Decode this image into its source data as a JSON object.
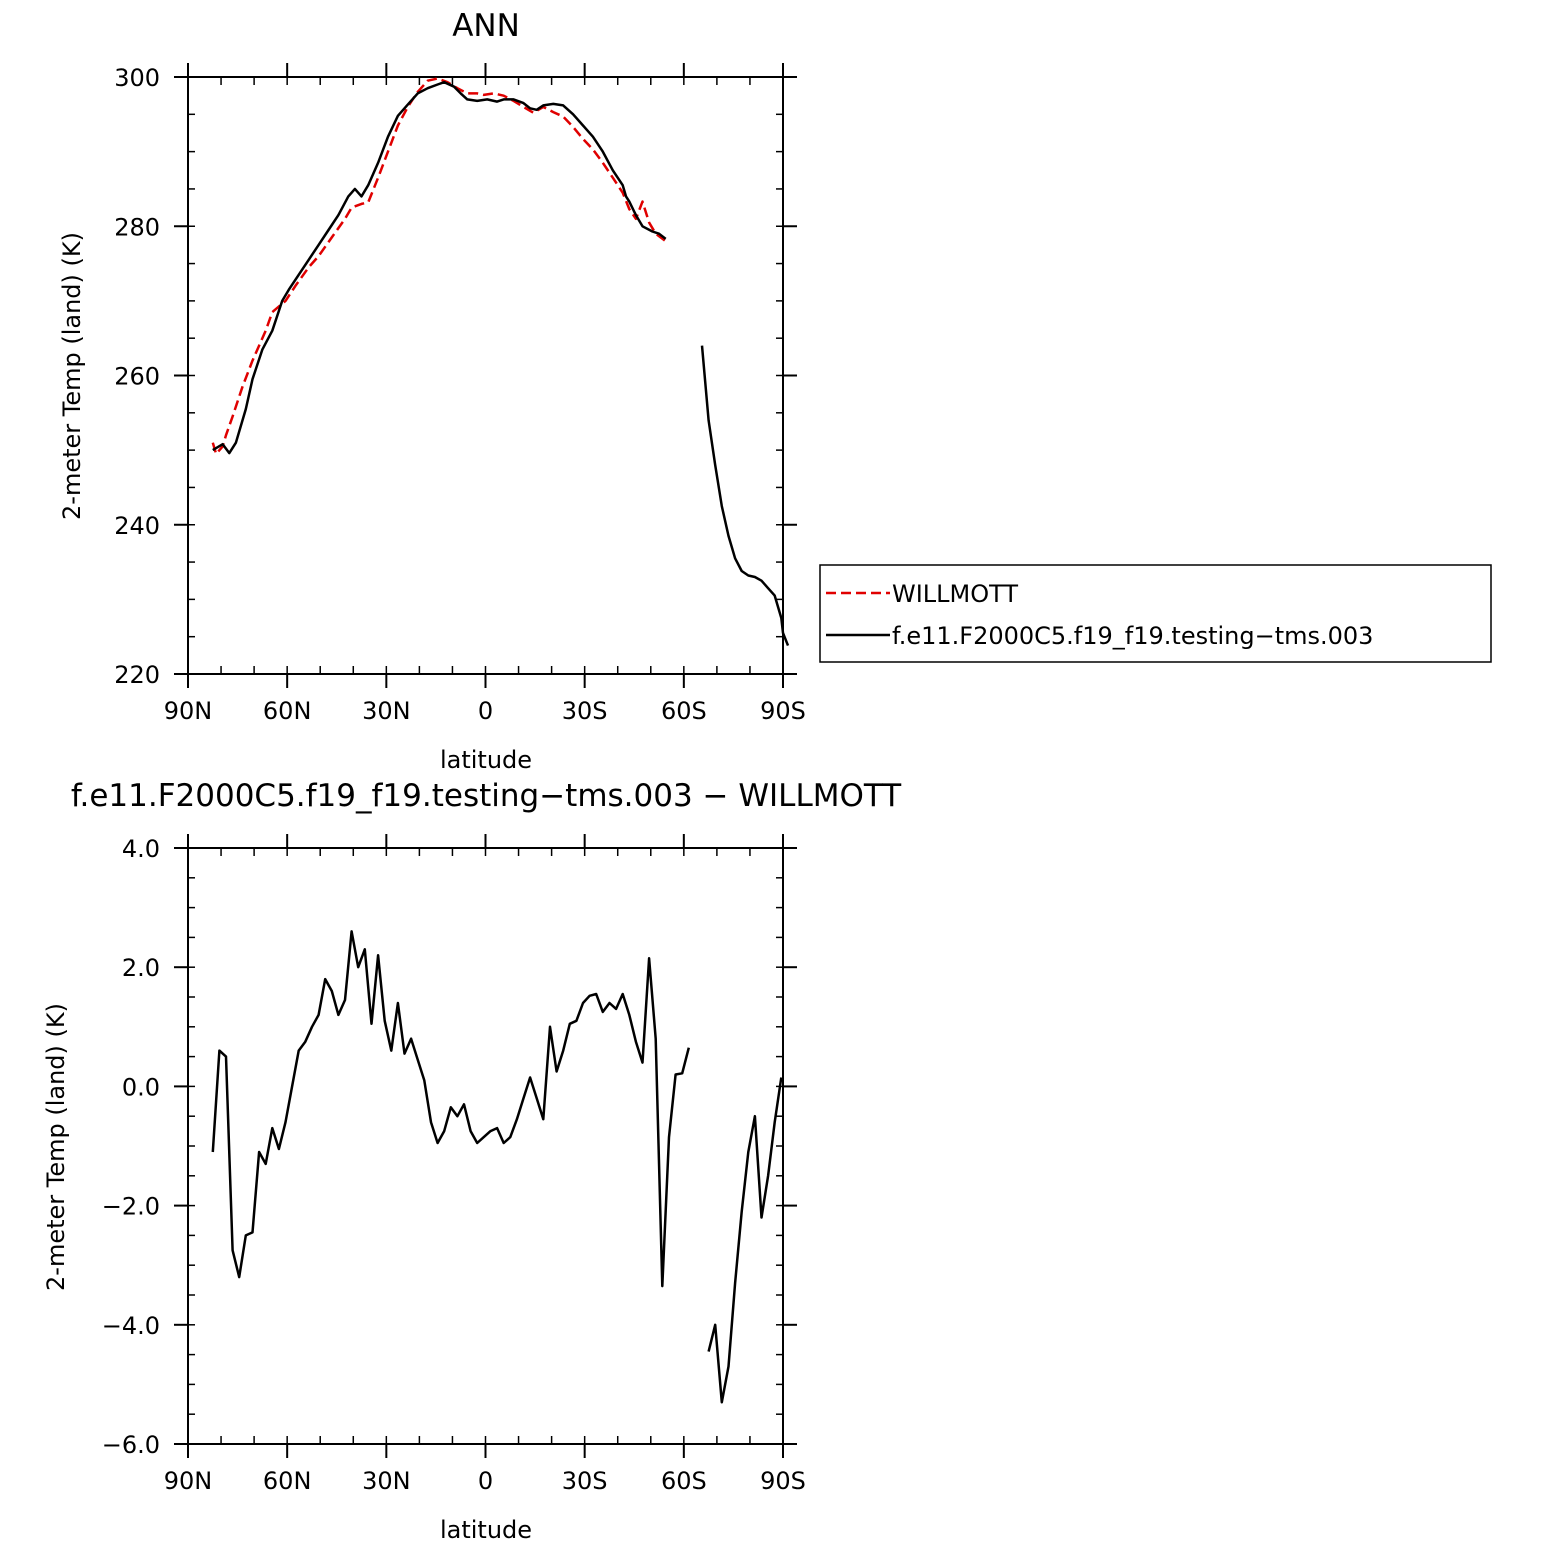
{
  "chart_data": [
    {
      "type": "line",
      "title": "ANN",
      "xlabel": "latitude",
      "ylabel": "2-meter Temp (land) (K)",
      "xlim": [
        90,
        -90
      ],
      "ylim": [
        220,
        300
      ],
      "x_ticks": [
        90,
        60,
        30,
        0,
        -30,
        -60,
        -90
      ],
      "x_tick_labels": [
        "90N",
        "60N",
        "30N",
        "0",
        "30S",
        "60S",
        "90S"
      ],
      "y_ticks": [
        220,
        240,
        260,
        280,
        300
      ],
      "y_tick_labels": [
        "220",
        "240",
        "260",
        "280",
        "300"
      ],
      "y_minor_step": 5,
      "x_minor_step": 10,
      "grid": false,
      "legend_position": "right",
      "series": [
        {
          "name": "WILLMOTT",
          "color": "#e00000",
          "dash": "dashed",
          "points": [
            [
              82.5,
              251
            ],
            [
              81.5,
              249.5
            ],
            [
              79.5,
              250.5
            ],
            [
              78.5,
              252
            ],
            [
              76.5,
              254.5
            ],
            [
              73.5,
              258.5
            ],
            [
              70.5,
              262
            ],
            [
              66.5,
              266
            ],
            [
              64.5,
              268.5
            ],
            [
              60.5,
              270
            ],
            [
              57.5,
              272
            ],
            [
              53.5,
              274.5
            ],
            [
              50.5,
              276
            ],
            [
              46.5,
              278.5
            ],
            [
              42.5,
              281
            ],
            [
              40.5,
              282.5
            ],
            [
              37.5,
              283
            ],
            [
              35.5,
              283.2
            ],
            [
              32.5,
              286.5
            ],
            [
              29.5,
              290
            ],
            [
              26.5,
              293.5
            ],
            [
              23.5,
              296
            ],
            [
              20.5,
              298
            ],
            [
              17.5,
              299.5
            ],
            [
              14.5,
              299.8
            ],
            [
              11.5,
              299.3
            ],
            [
              8.5,
              298.5
            ],
            [
              5.5,
              297.8
            ],
            [
              2.5,
              297.8
            ],
            [
              0.5,
              297.6
            ],
            [
              -2.5,
              297.8
            ],
            [
              -5.5,
              297.5
            ],
            [
              -8.5,
              296.8
            ],
            [
              -11.5,
              296
            ],
            [
              -14.5,
              295.2
            ],
            [
              -17.5,
              296
            ],
            [
              -20.5,
              295.3
            ],
            [
              -23.5,
              294.7
            ],
            [
              -26.5,
              293.3
            ],
            [
              -29.5,
              291.7
            ],
            [
              -32.5,
              290.3
            ],
            [
              -35.5,
              288.5
            ],
            [
              -38.5,
              286.5
            ],
            [
              -41.5,
              284.5
            ],
            [
              -43.5,
              282.3
            ],
            [
              -45.5,
              281
            ],
            [
              -47.5,
              283.3
            ],
            [
              -49.5,
              280.5
            ],
            [
              -51.5,
              279
            ],
            [
              -54.5,
              278
            ]
          ]
        },
        {
          "name": "f.e11.F2000C5.f19_f19.testing−tms.003",
          "color": "#000000",
          "dash": "solid",
          "segments": [
            [
              [
                82.5,
                250
              ],
              [
                79.5,
                250.8
              ],
              [
                77.5,
                249.6
              ],
              [
                75.5,
                251
              ],
              [
                72.5,
                255.5
              ],
              [
                70.5,
                259.5
              ],
              [
                67.5,
                263.5
              ],
              [
                64.5,
                266
              ],
              [
                61.5,
                270
              ],
              [
                59.5,
                271.5
              ],
              [
                56.5,
                273.5
              ],
              [
                53.5,
                275.5
              ],
              [
                50.5,
                277.5
              ],
              [
                47.5,
                279.5
              ],
              [
                44.5,
                281.5
              ],
              [
                41.5,
                284
              ],
              [
                39.5,
                285
              ],
              [
                37.5,
                284
              ],
              [
                35.5,
                285.5
              ],
              [
                32.5,
                288.5
              ],
              [
                29.5,
                292
              ],
              [
                26.5,
                294.8
              ],
              [
                23.5,
                296.3
              ],
              [
                20.5,
                297.8
              ],
              [
                17.5,
                298.5
              ],
              [
                14.5,
                299
              ],
              [
                12.5,
                299.3
              ],
              [
                9.5,
                298.7
              ],
              [
                7.5,
                297.8
              ],
              [
                5.5,
                297
              ],
              [
                2.5,
                296.8
              ],
              [
                -0.5,
                297
              ],
              [
                -3.5,
                296.7
              ],
              [
                -5.5,
                297
              ],
              [
                -8.5,
                297
              ],
              [
                -11.5,
                296.5
              ],
              [
                -13.5,
                295.8
              ],
              [
                -15.5,
                295.6
              ],
              [
                -17.5,
                296.2
              ],
              [
                -20.5,
                296.4
              ],
              [
                -23.5,
                296.2
              ],
              [
                -26.5,
                295
              ],
              [
                -29.5,
                293.5
              ],
              [
                -32.5,
                292
              ],
              [
                -35.5,
                290
              ],
              [
                -38.5,
                287.5
              ],
              [
                -41.5,
                285.5
              ],
              [
                -42.5,
                284
              ],
              [
                -43.5,
                283.3
              ],
              [
                -45.5,
                281.5
              ],
              [
                -47.5,
                280
              ],
              [
                -50.5,
                279.3
              ],
              [
                -52.5,
                279
              ],
              [
                -54.5,
                278.3
              ]
            ],
            [
              [
                -65.5,
                264
              ],
              [
                -67.5,
                254
              ],
              [
                -69.5,
                248
              ],
              [
                -71.5,
                242.5
              ],
              [
                -73.5,
                238.5
              ],
              [
                -75.5,
                235.5
              ],
              [
                -77.5,
                233.8
              ],
              [
                -79.5,
                233.2
              ],
              [
                -81.5,
                233
              ],
              [
                -83.5,
                232.5
              ],
              [
                -85.5,
                231.5
              ],
              [
                -87.5,
                230.5
              ],
              [
                -89.5,
                227.5
              ],
              [
                -90,
                225.5
              ],
              [
                -91.5,
                223.8
              ]
            ]
          ]
        }
      ]
    },
    {
      "type": "line",
      "title": "f.e11.F2000C5.f19_f19.testing−tms.003 − WILLMOTT",
      "xlabel": "latitude",
      "ylabel": "2-meter Temp (land) (K)",
      "xlim": [
        90,
        -90
      ],
      "ylim": [
        -6.0,
        4.0
      ],
      "x_ticks": [
        90,
        60,
        30,
        0,
        -30,
        -60,
        -90
      ],
      "x_tick_labels": [
        "90N",
        "60N",
        "30N",
        "0",
        "30S",
        "60S",
        "90S"
      ],
      "y_ticks": [
        -6.0,
        -4.0,
        -2.0,
        0.0,
        2.0,
        4.0
      ],
      "y_tick_labels": [
        "−6.0",
        "−4.0",
        "−2.0",
        "0.0",
        "2.0",
        "4.0"
      ],
      "y_minor_step": 0.5,
      "x_minor_step": 10,
      "grid": false,
      "series": [
        {
          "name": "",
          "color": "#000000",
          "dash": "solid",
          "segments": [
            [
              [
                82.5,
                -1.1
              ],
              [
                80.5,
                0.6
              ],
              [
                78.5,
                0.5
              ],
              [
                76.5,
                -2.75
              ],
              [
                74.5,
                -3.2
              ],
              [
                72.5,
                -2.5
              ],
              [
                70.5,
                -2.45
              ],
              [
                68.5,
                -1.1
              ],
              [
                66.5,
                -1.3
              ],
              [
                64.5,
                -0.7
              ],
              [
                62.5,
                -1.05
              ],
              [
                60.5,
                -0.6
              ],
              [
                58.5,
                0.0
              ],
              [
                56.5,
                0.6
              ],
              [
                54.5,
                0.75
              ],
              [
                52.5,
                1.0
              ],
              [
                50.5,
                1.2
              ],
              [
                48.5,
                1.8
              ],
              [
                46.5,
                1.6
              ],
              [
                44.5,
                1.2
              ],
              [
                42.5,
                1.45
              ],
              [
                40.5,
                2.6
              ],
              [
                38.5,
                2.0
              ],
              [
                36.5,
                2.3
              ],
              [
                34.5,
                1.05
              ],
              [
                32.5,
                2.2
              ],
              [
                30.5,
                1.1
              ],
              [
                28.5,
                0.6
              ],
              [
                26.5,
                1.4
              ],
              [
                24.5,
                0.55
              ],
              [
                22.5,
                0.8
              ],
              [
                20.5,
                0.45
              ],
              [
                18.5,
                0.1
              ],
              [
                16.5,
                -0.6
              ],
              [
                14.5,
                -0.95
              ],
              [
                12.5,
                -0.75
              ],
              [
                10.5,
                -0.35
              ],
              [
                8.5,
                -0.5
              ],
              [
                6.5,
                -0.3
              ],
              [
                4.5,
                -0.75
              ],
              [
                2.5,
                -0.95
              ],
              [
                0.5,
                -0.85
              ],
              [
                -1.5,
                -0.75
              ],
              [
                -3.5,
                -0.7
              ],
              [
                -5.5,
                -0.95
              ],
              [
                -7.5,
                -0.85
              ],
              [
                -9.5,
                -0.55
              ],
              [
                -11.5,
                -0.2
              ],
              [
                -13.5,
                0.15
              ],
              [
                -15.5,
                -0.2
              ],
              [
                -17.5,
                -0.55
              ],
              [
                -19.5,
                1.0
              ],
              [
                -21.5,
                0.25
              ],
              [
                -23.5,
                0.6
              ],
              [
                -25.5,
                1.05
              ],
              [
                -27.5,
                1.1
              ],
              [
                -29.5,
                1.4
              ],
              [
                -31.5,
                1.52
              ],
              [
                -33.5,
                1.55
              ],
              [
                -35.5,
                1.25
              ],
              [
                -37.5,
                1.4
              ],
              [
                -39.5,
                1.3
              ],
              [
                -41.5,
                1.55
              ],
              [
                -43.5,
                1.2
              ],
              [
                -45.5,
                0.75
              ],
              [
                -47.5,
                0.4
              ],
              [
                -49.5,
                2.15
              ],
              [
                -51.5,
                0.8
              ],
              [
                -53.5,
                -3.35
              ],
              [
                -55.5,
                -0.85
              ],
              [
                -57.5,
                0.2
              ],
              [
                -59.5,
                0.22
              ],
              [
                -61.5,
                0.65
              ]
            ],
            [
              [
                -67.5,
                -4.45
              ],
              [
                -69.5,
                -4.0
              ],
              [
                -71.5,
                -5.3
              ],
              [
                -73.5,
                -4.7
              ],
              [
                -75.5,
                -3.3
              ],
              [
                -77.5,
                -2.1
              ],
              [
                -79.5,
                -1.1
              ],
              [
                -81.5,
                -0.5
              ],
              [
                -83.5,
                -2.2
              ],
              [
                -85.5,
                -1.5
              ],
              [
                -87.5,
                -0.6
              ],
              [
                -89.5,
                0.15
              ]
            ]
          ]
        }
      ]
    }
  ]
}
